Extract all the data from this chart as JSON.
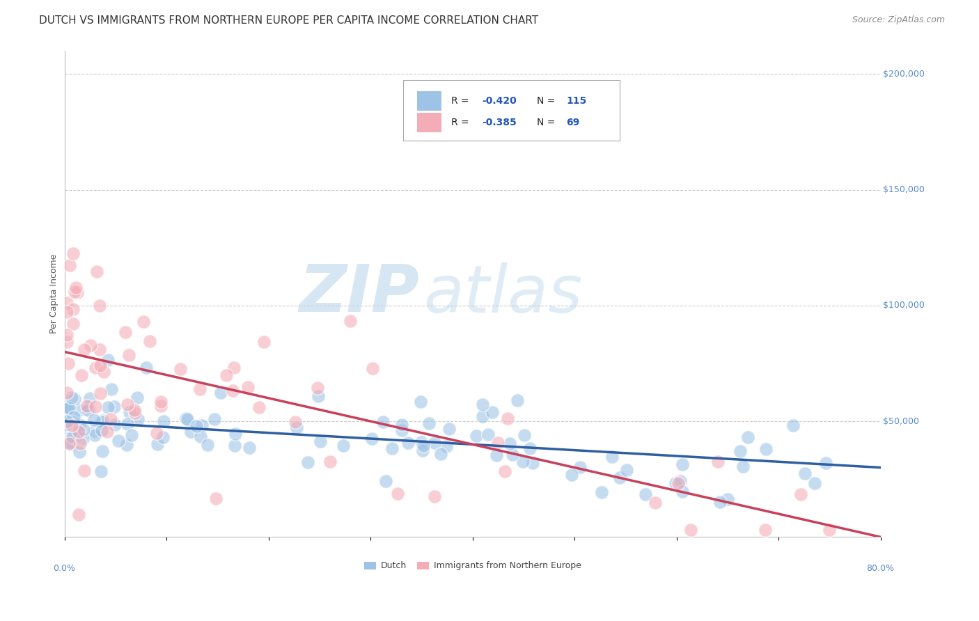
{
  "title": "DUTCH VS IMMIGRANTS FROM NORTHERN EUROPE PER CAPITA INCOME CORRELATION CHART",
  "source": "Source: ZipAtlas.com",
  "ylabel": "Per Capita Income",
  "xmin": 0.0,
  "xmax": 0.8,
  "ymin": 0,
  "ymax": 210000,
  "yticks": [
    0,
    50000,
    100000,
    150000,
    200000
  ],
  "ytick_labels": [
    "",
    "$50,000",
    "$100,000",
    "$150,000",
    "$200,000"
  ],
  "watermark_zip": "ZIP",
  "watermark_atlas": "atlas",
  "legend_r_blue": "-0.420",
  "legend_n_blue": "115",
  "legend_r_pink": "-0.385",
  "legend_n_pink": "69",
  "legend_label_blue": "Dutch",
  "legend_label_pink": "Immigrants from Northern Europe",
  "blue_color": "#9dc3e6",
  "pink_color": "#f4acb7",
  "blue_line_color": "#2e5fa3",
  "pink_line_color": "#c9405a",
  "blue_n": 115,
  "pink_n": 69,
  "blue_intercept": 50000,
  "blue_slope": -25000,
  "pink_intercept": 80000,
  "pink_slope": -100000,
  "title_fontsize": 11,
  "axis_label_fontsize": 9,
  "tick_fontsize": 9,
  "source_fontsize": 9,
  "background_color": "#ffffff",
  "grid_color": "#cccccc"
}
